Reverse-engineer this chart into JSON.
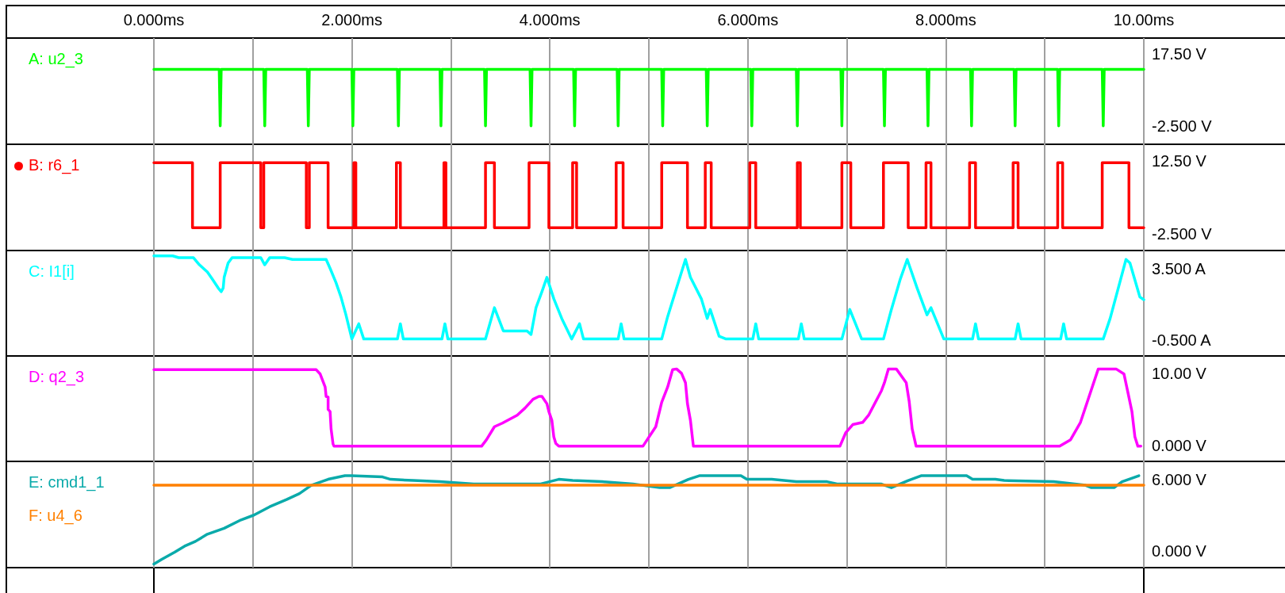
{
  "chart_data": [
    {
      "type": "line",
      "legend": "left",
      "grid": "x",
      "marker": "none",
      "xlim": [
        0,
        10
      ],
      "xticks": [
        {
          "value": 0,
          "label": "0.000ms"
        },
        {
          "value": 1,
          "label": null
        },
        {
          "value": 2,
          "label": "2.000ms"
        },
        {
          "value": 3,
          "label": null
        },
        {
          "value": 4,
          "label": "4.000ms"
        },
        {
          "value": 5,
          "label": null
        },
        {
          "value": 6,
          "label": "6.000ms"
        },
        {
          "value": 7,
          "label": null
        },
        {
          "value": 8,
          "label": "8.000ms"
        },
        {
          "value": 9,
          "label": null
        },
        {
          "value": 10,
          "label": "10.00ms"
        }
      ],
      "ylim": [
        -7.5,
        22
      ],
      "yticks": [
        {
          "value": -2.5,
          "label": "-2.500 V"
        },
        {
          "value": 17.5,
          "label": "17.50 V"
        }
      ],
      "series": [
        {
          "name": "A: u2_3",
          "color": "#00ff00",
          "x": [
            0,
            0.66,
            0.67,
            0.68,
            1.11,
            1.12,
            1.13,
            1.55,
            1.56,
            1.57,
            2.0,
            2.01,
            2.02,
            2.46,
            2.47,
            2.48,
            2.89,
            2.9,
            2.91,
            3.34,
            3.35,
            3.36,
            3.8,
            3.81,
            3.82,
            4.24,
            4.25,
            4.26,
            4.68,
            4.69,
            4.7,
            5.13,
            5.14,
            5.15,
            5.58,
            5.59,
            5.6,
            6.03,
            6.04,
            6.05,
            6.49,
            6.5,
            6.51,
            6.94,
            6.95,
            6.96,
            7.37,
            7.38,
            7.39,
            7.81,
            7.82,
            7.83,
            8.25,
            8.26,
            8.27,
            8.69,
            8.7,
            8.71,
            9.13,
            9.14,
            9.15,
            9.58,
            9.59,
            9.6,
            10
          ],
          "values": [
            13.3,
            13.3,
            -2.4,
            13.3,
            13.3,
            -2.4,
            13.3,
            13.3,
            -2.4,
            13.3,
            13.3,
            -2.4,
            13.3,
            13.3,
            -2.4,
            13.3,
            13.3,
            -2.4,
            13.3,
            13.3,
            -2.4,
            13.3,
            13.3,
            -2.4,
            13.3,
            13.3,
            -2.4,
            13.3,
            13.3,
            -2.4,
            13.3,
            13.3,
            -2.4,
            13.3,
            13.3,
            -2.4,
            13.3,
            13.3,
            -2.4,
            13.3,
            13.3,
            -2.4,
            13.3,
            13.3,
            -2.4,
            13.3,
            13.3,
            -2.4,
            13.3,
            13.3,
            -2.4,
            13.3,
            13.3,
            -2.4,
            13.3,
            13.3,
            -2.4,
            13.3,
            13.3,
            -2.4,
            13.3,
            13.3,
            -2.4,
            13.3,
            13.3
          ]
        }
      ]
    },
    {
      "type": "line",
      "legend": "left",
      "grid": "x",
      "marker": "none",
      "tick_labels": "y",
      "xlim": [
        0,
        10
      ],
      "xticks": [
        0,
        1,
        2,
        3,
        4,
        5,
        6,
        7,
        8,
        9,
        10
      ],
      "ylim": [
        -6,
        16
      ],
      "yticks": [
        {
          "value": -2.5,
          "label": "-2.500 V"
        },
        {
          "value": 12.5,
          "label": "12.50 V"
        }
      ],
      "series": [
        {
          "name": "B: r6_1",
          "color": "#ff0000",
          "x": [
            0,
            0.39,
            0.39,
            0.67,
            0.67,
            1.08,
            1.08,
            1.11,
            1.11,
            1.54,
            1.54,
            1.57,
            1.57,
            1.76,
            1.76,
            2.02,
            2.02,
            2.04,
            2.04,
            2.45,
            2.45,
            2.49,
            2.49,
            2.93,
            2.93,
            2.95,
            2.95,
            3.35,
            3.35,
            3.44,
            3.44,
            3.79,
            3.79,
            3.99,
            3.99,
            4.23,
            4.23,
            4.27,
            4.27,
            4.67,
            4.67,
            4.74,
            4.74,
            5.13,
            5.13,
            5.39,
            5.39,
            5.57,
            5.57,
            5.63,
            5.63,
            6.02,
            6.02,
            6.08,
            6.08,
            6.5,
            6.5,
            6.53,
            6.53,
            6.95,
            6.95,
            7.04,
            7.04,
            7.37,
            7.37,
            7.62,
            7.62,
            7.8,
            7.8,
            7.85,
            7.85,
            8.24,
            8.24,
            8.3,
            8.3,
            8.68,
            8.68,
            8.73,
            8.73,
            9.13,
            9.13,
            9.18,
            9.18,
            9.58,
            9.58,
            9.85,
            9.85,
            10
          ],
          "values": [
            12.2,
            12.2,
            -1.3,
            -1.3,
            12.2,
            12.2,
            -1.3,
            -1.3,
            12.2,
            12.2,
            -1.3,
            -1.3,
            12.2,
            12.2,
            -1.3,
            -1.3,
            12.2,
            12.2,
            -1.3,
            -1.3,
            12.2,
            12.2,
            -1.3,
            -1.3,
            12.2,
            12.2,
            -1.3,
            -1.3,
            12.2,
            12.2,
            -1.3,
            -1.3,
            12.2,
            12.2,
            -1.3,
            -1.3,
            12.2,
            12.2,
            -1.3,
            -1.3,
            12.2,
            12.2,
            -1.3,
            -1.3,
            12.2,
            12.2,
            -1.3,
            -1.3,
            12.2,
            12.2,
            -1.3,
            -1.3,
            12.2,
            12.2,
            -1.3,
            -1.3,
            12.2,
            12.2,
            -1.3,
            -1.3,
            12.2,
            12.2,
            -1.3,
            -1.3,
            12.2,
            12.2,
            -1.3,
            -1.3,
            12.2,
            12.2,
            -1.3,
            -1.3,
            12.2,
            12.2,
            -1.3,
            -1.3,
            12.2,
            12.2,
            -1.3,
            -1.3,
            12.2,
            12.2,
            -1.3,
            -1.3,
            12.2,
            12.2,
            -1.3,
            -1.3
          ]
        }
      ]
    },
    {
      "type": "line",
      "legend": "left",
      "grid": "x",
      "marker": "none",
      "tick_labels": "y",
      "xlim": [
        0,
        10
      ],
      "xticks": [
        0,
        1,
        2,
        3,
        4,
        5,
        6,
        7,
        8,
        9,
        10
      ],
      "ylim": [
        -1.4,
        4.5
      ],
      "yticks": [
        {
          "value": -0.5,
          "label": "-0.500 A"
        },
        {
          "value": 3.5,
          "label": "3.500 A"
        }
      ],
      "series": [
        {
          "name": "C: I1[i]",
          "color": "#00ffff",
          "x": [
            0,
            0.19,
            0.25,
            0.4,
            0.46,
            0.54,
            0.59,
            0.65,
            0.68,
            0.7,
            0.71,
            0.75,
            0.79,
            1.08,
            1.12,
            1.17,
            1.32,
            1.4,
            1.74,
            1.78,
            1.84,
            1.89,
            1.94,
            2.0,
            2.07,
            2.12,
            2.46,
            2.49,
            2.52,
            2.91,
            2.94,
            2.97,
            3.35,
            3.44,
            3.53,
            3.77,
            3.81,
            3.86,
            3.92,
            3.97,
            4.04,
            4.12,
            4.22,
            4.3,
            4.34,
            4.69,
            4.72,
            4.75,
            5.13,
            5.19,
            5.28,
            5.37,
            5.42,
            5.53,
            5.59,
            5.62,
            5.71,
            5.78,
            6.05,
            6.08,
            6.11,
            6.51,
            6.54,
            6.57,
            6.95,
            7.03,
            7.15,
            7.37,
            7.45,
            7.54,
            7.61,
            7.71,
            7.81,
            7.85,
            7.98,
            8.27,
            8.3,
            8.33,
            8.7,
            8.73,
            8.76,
            9.16,
            9.19,
            9.22,
            9.59,
            9.66,
            9.82,
            9.86,
            9.96,
            10
          ],
          "values": [
            4.2,
            4.2,
            4.1,
            4.1,
            3.7,
            3.3,
            2.9,
            2.4,
            2.2,
            2.4,
            3.0,
            3.8,
            4.1,
            4.1,
            3.7,
            4.1,
            4.1,
            4.0,
            4.0,
            3.5,
            2.7,
            1.9,
            0.9,
            -0.45,
            0.4,
            -0.45,
            -0.45,
            0.4,
            -0.45,
            -0.45,
            0.4,
            -0.45,
            -0.45,
            1.3,
            0,
            0,
            -0.2,
            1.3,
            2.2,
            3.0,
            1.8,
            0.7,
            -0.45,
            0.4,
            -0.45,
            -0.45,
            0.4,
            -0.45,
            -0.45,
            0.8,
            2.4,
            4.0,
            3.0,
            1.8,
            0.7,
            1.2,
            -0.3,
            -0.45,
            -0.45,
            0.4,
            -0.45,
            -0.45,
            0.4,
            -0.45,
            -0.45,
            1.2,
            -0.45,
            -0.45,
            1.2,
            2.9,
            4.0,
            2.4,
            0.9,
            1.3,
            -0.45,
            -0.45,
            0.4,
            -0.45,
            -0.45,
            0.4,
            -0.45,
            -0.45,
            0.4,
            -0.45,
            -0.45,
            0.7,
            4.0,
            3.8,
            1.9,
            1.75
          ]
        }
      ]
    },
    {
      "type": "line",
      "legend": "left",
      "grid": "x",
      "marker": "none",
      "tick_labels": "y",
      "xlim": [
        0,
        10
      ],
      "xticks": [
        0,
        1,
        2,
        3,
        4,
        5,
        6,
        7,
        8,
        9,
        10
      ],
      "ylim": [
        -2.2,
        12.4
      ],
      "yticks": [
        {
          "value": 0,
          "label": "0.000 V"
        },
        {
          "value": 10,
          "label": "10.00 V"
        }
      ],
      "series": [
        {
          "name": "D: q2_3",
          "color": "#ff00ff",
          "x": [
            0,
            1.64,
            1.68,
            1.73,
            1.74,
            1.76,
            1.76,
            1.78,
            1.79,
            1.81,
            1.82,
            3.31,
            3.36,
            3.44,
            3.52,
            3.67,
            3.75,
            3.83,
            3.89,
            3.92,
            3.97,
            3.99,
            4.02,
            4.04,
            4.06,
            4.09,
            4.94,
            5.07,
            5.13,
            5.19,
            5.24,
            5.28,
            5.33,
            5.37,
            5.39,
            5.42,
            5.45,
            6.93,
            6.99,
            7.06,
            7.16,
            7.22,
            7.35,
            7.38,
            7.42,
            7.5,
            7.6,
            7.63,
            7.66,
            7.7,
            9.15,
            9.26,
            9.36,
            9.54,
            9.72,
            9.8,
            9.84,
            9.88,
            9.91,
            9.94,
            9.97
          ],
          "values": [
            10.5,
            10.5,
            9.9,
            8.1,
            6.8,
            6.7,
            5.0,
            4.7,
            2.3,
            0.2,
            -0.1,
            -0.1,
            0.8,
            2.6,
            3.1,
            4.2,
            5.2,
            6.4,
            6.8,
            6.8,
            5.8,
            4.7,
            3.5,
            1.2,
            0.3,
            -0.1,
            -0.1,
            2.6,
            6.0,
            8.1,
            10.5,
            10.6,
            10.0,
            8.7,
            5.8,
            3.5,
            -0.1,
            -0.1,
            1.8,
            2.9,
            3.2,
            4.2,
            7.6,
            8.7,
            10.6,
            10.6,
            8.7,
            6.1,
            2.3,
            -0.1,
            -0.1,
            0.8,
            3.2,
            10.6,
            10.6,
            9.9,
            7.3,
            4.7,
            1.2,
            -0.1,
            -0.1
          ]
        }
      ]
    },
    {
      "type": "line",
      "legend": "left",
      "grid": "x",
      "marker": "none",
      "tick_labels": "y",
      "xlim": [
        0,
        10
      ],
      "xticks": [
        0,
        1,
        2,
        3,
        4,
        5,
        6,
        7,
        8,
        9,
        10
      ],
      "ylim": [
        -1.4,
        7.5
      ],
      "yticks": [
        {
          "value": 0,
          "label": "0.000 V"
        },
        {
          "value": 6,
          "label": "6.000 V"
        }
      ],
      "series": [
        {
          "name": "E: cmd1_1",
          "color": "#0aaaaa",
          "x": [
            0,
            0.08,
            0.21,
            0.31,
            0.42,
            0.54,
            0.71,
            0.88,
            1.01,
            1.17,
            1.34,
            1.47,
            1.59,
            1.76,
            1.93,
            1.99,
            2.31,
            2.39,
            2.62,
            2.89,
            3.23,
            3.9,
            4.09,
            4.23,
            4.53,
            4.84,
            5.11,
            5.21,
            5.4,
            5.51,
            5.93,
            5.99,
            6.24,
            6.49,
            6.8,
            6.91,
            7.35,
            7.45,
            7.62,
            7.75,
            8.21,
            8.27,
            8.5,
            8.59,
            9.09,
            9.41,
            9.47,
            9.7,
            9.78,
            9.95
          ],
          "values": [
            -1.1,
            -0.7,
            -0.1,
            0.4,
            0.8,
            1.4,
            1.9,
            2.6,
            3.0,
            3.7,
            4.3,
            4.8,
            5.5,
            6.0,
            6.3,
            6.3,
            6.2,
            6.0,
            5.9,
            5.8,
            5.6,
            5.6,
            6.0,
            5.9,
            5.8,
            5.6,
            5.3,
            5.3,
            6.0,
            6.3,
            6.3,
            6.0,
            6.0,
            5.8,
            5.8,
            5.6,
            5.6,
            5.3,
            5.9,
            6.3,
            6.3,
            6.0,
            6.0,
            5.9,
            5.8,
            5.5,
            5.3,
            5.3,
            5.8,
            6.3
          ]
        },
        {
          "name": "F: u4_6",
          "color": "#ff8000",
          "x": [
            0,
            10
          ],
          "values": [
            5.5,
            5.5
          ]
        }
      ]
    }
  ]
}
